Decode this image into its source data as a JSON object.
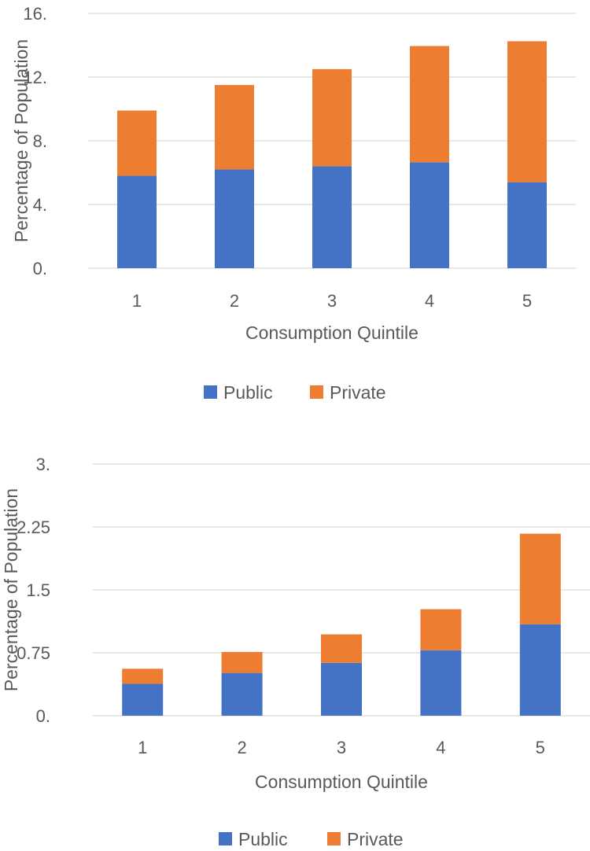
{
  "chart_data": [
    {
      "type": "bar",
      "stacked": true,
      "categories": [
        "1",
        "2",
        "3",
        "4",
        "5"
      ],
      "series": [
        {
          "name": "Public",
          "color": "#4472C4",
          "values": [
            5.8,
            6.2,
            6.4,
            6.65,
            5.4
          ]
        },
        {
          "name": "Private",
          "color": "#ED7D31",
          "values": [
            4.1,
            5.3,
            6.1,
            7.3,
            8.85
          ]
        }
      ],
      "xlabel": "Consumption Quintile",
      "ylabel": "Percentage of Population",
      "ylim": [
        0,
        16
      ],
      "yticks": [
        "0.",
        "4.",
        "8.",
        "12.",
        "16."
      ],
      "grid": true,
      "legend_position": "bottom"
    },
    {
      "type": "bar",
      "stacked": true,
      "categories": [
        "1",
        "2",
        "3",
        "4",
        "5"
      ],
      "series": [
        {
          "name": "Public",
          "color": "#4472C4",
          "values": [
            0.38,
            0.51,
            0.63,
            0.78,
            1.09
          ]
        },
        {
          "name": "Private",
          "color": "#ED7D31",
          "values": [
            0.18,
            0.25,
            0.34,
            0.49,
            1.08
          ]
        }
      ],
      "xlabel": "Consumption Quintile",
      "ylabel": "Percentage of Population",
      "ylim": [
        0,
        3
      ],
      "yticks": [
        "0.",
        "0.75",
        "1.5",
        "2.25",
        "3."
      ],
      "grid": true,
      "legend_position": "bottom"
    }
  ]
}
